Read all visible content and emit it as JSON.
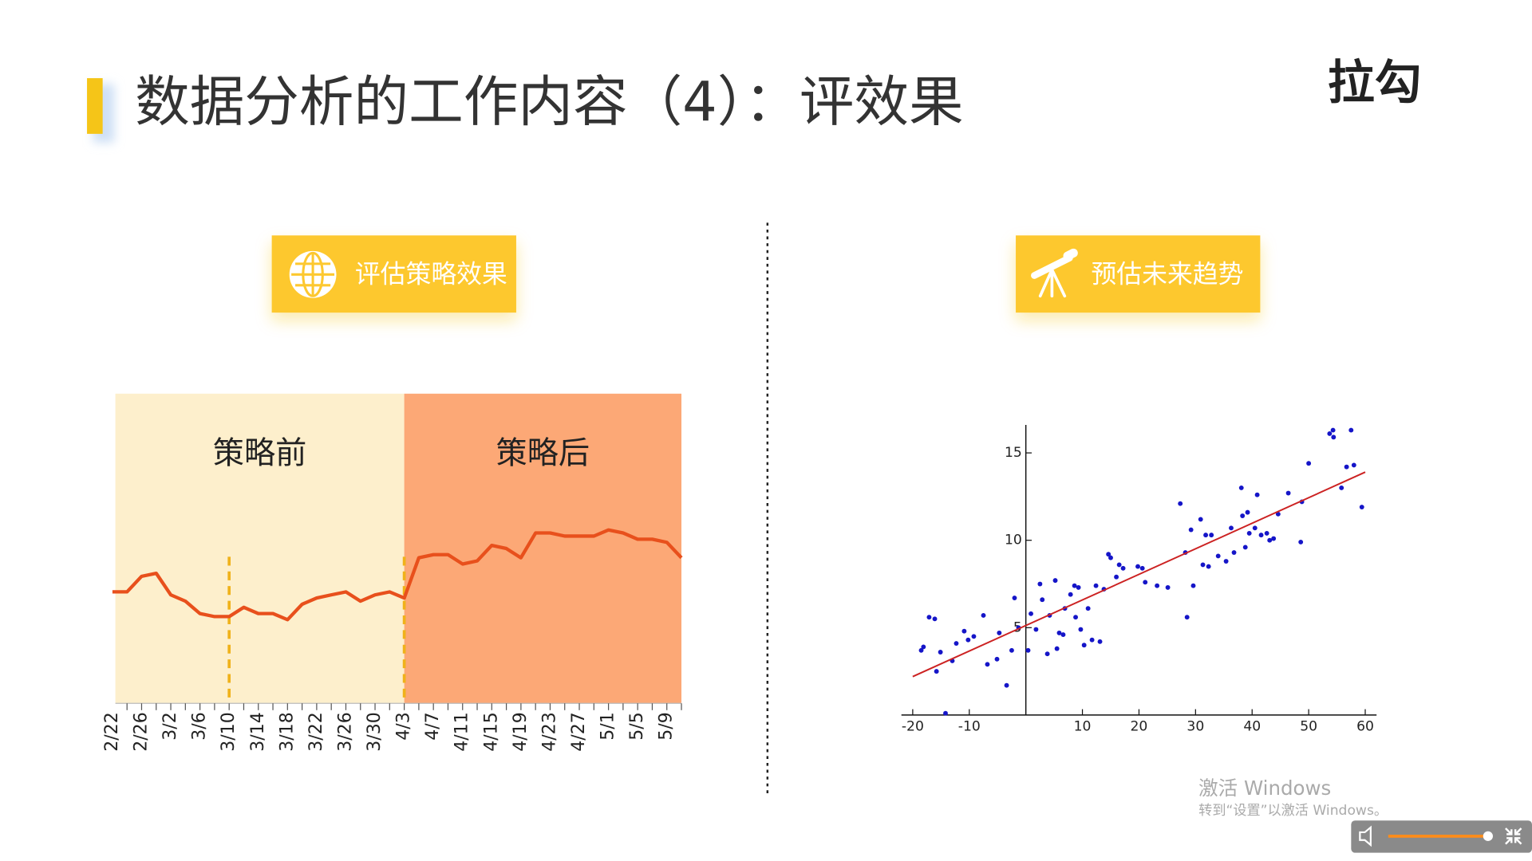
{
  "header": {
    "title": "数据分析的工作内容（4）：评效果",
    "logo": "拉勾"
  },
  "buttons": [
    {
      "label": "评估策略效果"
    },
    {
      "label": "预估未来趋势"
    }
  ],
  "chart_data": [
    {
      "type": "line",
      "categories": [
        "2/22",
        null,
        "2/26",
        null,
        "3/2",
        null,
        "3/6",
        null,
        "3/10",
        null,
        "3/14",
        null,
        "3/18",
        null,
        "3/22",
        null,
        "3/26",
        null,
        "3/30",
        null,
        "4/3",
        null,
        "4/7",
        null,
        "4/11",
        null,
        "4/15",
        null,
        "4/19",
        null,
        "4/23",
        null,
        "4/27",
        null,
        "5/1",
        null,
        "5/5",
        null,
        "5/9",
        null
      ],
      "values": [
        36,
        36,
        41,
        42,
        35,
        33,
        29,
        28,
        28,
        31,
        29,
        29,
        27,
        32,
        34,
        35,
        36,
        33,
        35,
        36,
        34,
        47,
        48,
        48,
        45,
        46,
        51,
        50,
        47,
        55,
        55,
        54,
        54,
        54,
        56,
        55,
        53,
        53,
        52,
        47
      ],
      "color": "#e8501c",
      "ylim": [
        0,
        100
      ],
      "regions": [
        {
          "label": "策略前",
          "color": "#fdefcc"
        },
        {
          "label": "策略后",
          "color": "#fca876"
        }
      ],
      "split_at": "4/3",
      "markers": [
        "3/10",
        "4/3"
      ],
      "marker_color": "#f0b21a"
    },
    {
      "type": "scatter",
      "x": [
        -18.5,
        -18.1,
        -17.1,
        -16.1,
        -15.8,
        -15.1,
        -14.2,
        -13.0,
        -12.3,
        -10.9,
        -10.2,
        -9.2,
        -7.5,
        -6.8,
        -5.1,
        -4.7,
        -3.4,
        -2.5,
        -2.0,
        -1.3,
        0.4,
        0.9,
        1.8,
        2.5,
        2.9,
        3.8,
        4.2,
        5.2,
        5.5,
        5.9,
        6.6,
        6.9,
        7.9,
        8.6,
        8.8,
        9.3,
        9.7,
        10.3,
        11.0,
        11.7,
        12.4,
        13.1,
        13.8,
        14.6,
        15.0,
        16.0,
        16.5,
        17.2,
        19.8,
        20.6,
        21.1,
        23.2,
        25.1,
        27.3,
        28.2,
        28.5,
        29.2,
        29.6,
        30.9,
        31.3,
        31.8,
        32.3,
        32.8,
        34.0,
        35.4,
        36.3,
        36.8,
        38.1,
        38.3,
        38.8,
        39.2,
        39.5,
        40.5,
        40.9,
        41.6,
        42.6,
        43.1,
        43.8,
        44.6,
        46.4,
        48.6,
        48.8,
        50.0,
        53.7,
        54.3,
        54.4,
        55.8,
        56.7,
        57.5,
        58.0,
        59.4
      ],
      "values": [
        3.7,
        3.9,
        5.6,
        5.5,
        2.5,
        3.6,
        0.1,
        3.1,
        4.1,
        4.8,
        4.3,
        4.5,
        5.7,
        2.9,
        3.2,
        4.7,
        1.7,
        3.7,
        6.7,
        5.0,
        3.7,
        5.8,
        4.9,
        7.5,
        6.6,
        3.5,
        5.7,
        7.7,
        3.8,
        4.7,
        4.6,
        6.1,
        6.9,
        7.4,
        5.6,
        7.3,
        4.9,
        4.0,
        6.1,
        4.3,
        7.4,
        4.2,
        7.2,
        9.2,
        9.0,
        7.9,
        8.6,
        8.4,
        8.5,
        8.4,
        7.6,
        7.4,
        7.3,
        12.1,
        9.3,
        5.6,
        10.6,
        7.4,
        11.2,
        8.6,
        10.3,
        8.5,
        10.3,
        9.1,
        8.8,
        10.7,
        9.3,
        13.0,
        11.4,
        9.6,
        11.6,
        10.4,
        10.7,
        12.6,
        10.3,
        10.4,
        10.0,
        10.1,
        11.5,
        12.7,
        9.9,
        12.2,
        14.4,
        16.1,
        16.3,
        15.9,
        13.0,
        14.2,
        16.3,
        14.3,
        11.9
      ],
      "color": "#1515c8",
      "trend": {
        "x": [
          -20,
          60
        ],
        "y": [
          2.2,
          13.9
        ],
        "color": "#cc2222"
      },
      "xlim": [
        -22,
        62
      ],
      "ylim": [
        0,
        16.6
      ],
      "xticks": [
        -20,
        -10,
        10,
        20,
        30,
        40,
        50,
        60
      ],
      "yticks": [
        5,
        10,
        15
      ]
    }
  ],
  "watermark": {
    "title": "激活 Windows",
    "subtitle": "转到“设置”以激活 Windows。"
  }
}
